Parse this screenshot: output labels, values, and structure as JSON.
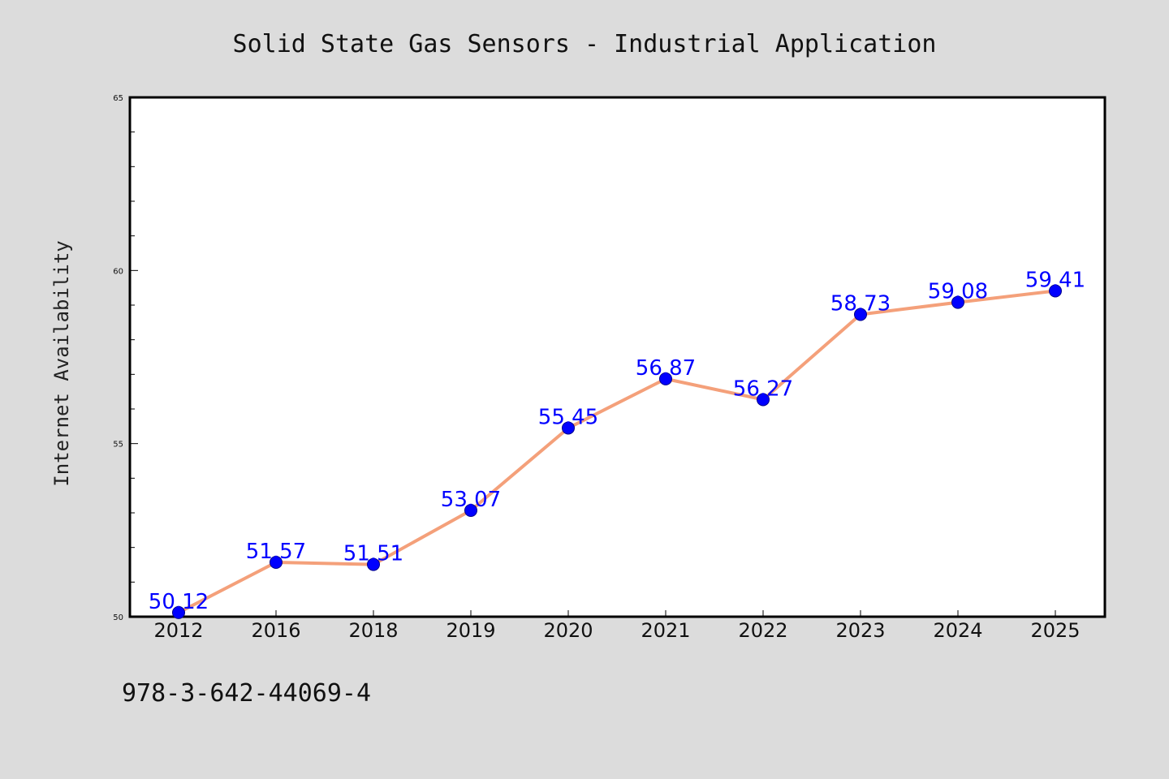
{
  "chart_data": {
    "type": "line",
    "title": "Solid State Gas Sensors - Industrial Application",
    "xlabel": "",
    "ylabel": "Internet Availability",
    "categories": [
      "2012",
      "2016",
      "2018",
      "2019",
      "2020",
      "2021",
      "2022",
      "2023",
      "2024",
      "2025"
    ],
    "series": [
      {
        "values": [
          50.12,
          51.57,
          51.51,
          53.07,
          55.45,
          56.87,
          56.27,
          58.73,
          59.08,
          59.41
        ],
        "labels": [
          "50.12",
          "51.57",
          "51.51",
          "53.07",
          "55.45",
          "56.87",
          "56.27",
          "58.73",
          "59.08",
          "59.41"
        ],
        "line_color": "#f4a07a",
        "marker_color": "#0000ff"
      }
    ],
    "ylim": [
      50,
      65
    ],
    "yticks": [
      "50",
      "55",
      "60",
      "65"
    ],
    "grid": false,
    "legend": "none"
  },
  "footer": {
    "isbn": "978-3-642-44069-4"
  },
  "colors": {
    "background": "#dcdcdc",
    "plot_background": "#ffffff",
    "label_color": "#0000ff"
  }
}
